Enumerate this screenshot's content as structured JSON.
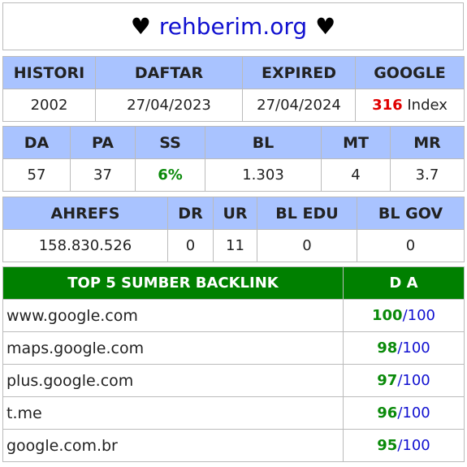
{
  "header": {
    "heart_left": "♥",
    "site": "rehberim.org",
    "heart_right": "♥"
  },
  "table1": {
    "headers": [
      "HISTORI",
      "DAFTAR",
      "EXPIRED",
      "GOOGLE"
    ],
    "histori": "2002",
    "daftar": "27/04/2023",
    "expired": "27/04/2024",
    "google_count": "316",
    "google_suffix": "Index"
  },
  "table2": {
    "headers": [
      "DA",
      "PA",
      "SS",
      "BL",
      "MT",
      "MR"
    ],
    "da": "57",
    "pa": "37",
    "ss": "6%",
    "bl": "1.303",
    "mt": "4",
    "mr": "3.7"
  },
  "table3": {
    "headers": [
      "AHREFS",
      "DR",
      "UR",
      "BL EDU",
      "BL GOV"
    ],
    "ahrefs": "158.830.526",
    "dr": "0",
    "ur": "11",
    "bl_edu": "0",
    "bl_gov": "0"
  },
  "backlinks": {
    "header_title": "TOP 5 SUMBER BACKLINK",
    "header_da": "D A",
    "rows": [
      {
        "domain": "www.google.com",
        "score": "100",
        "max": "100"
      },
      {
        "domain": "maps.google.com",
        "score": "98",
        "max": "100"
      },
      {
        "domain": "plus.google.com",
        "score": "97",
        "max": "100"
      },
      {
        "domain": "t.me",
        "score": "96",
        "max": "100"
      },
      {
        "domain": "google.com.br",
        "score": "95",
        "max": "100"
      }
    ]
  },
  "colors": {
    "header_bg": "#a9c3ff",
    "backlink_header_bg": "#008000",
    "accent_blue": "#1010d0",
    "accent_green": "#0a8a0a",
    "accent_red": "#e00000"
  }
}
